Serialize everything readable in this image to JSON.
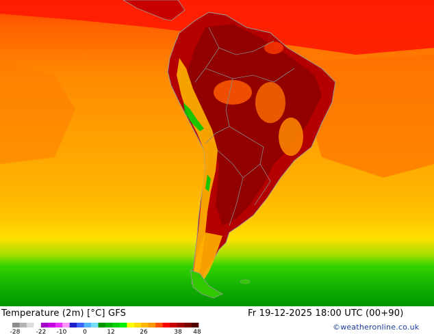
{
  "map": {
    "title": "Temperature (2m) [°C] GFS",
    "datetime": "Fr 19-12-2025 18:00 UTC (00+90)",
    "credit": "©weatheronline.co.uk"
  },
  "legend": {
    "colors": [
      "#8c8c8c",
      "#b4b4b4",
      "#dcdcdc",
      "#ffffff",
      "#a000c8",
      "#c800e6",
      "#e632ff",
      "#ff96ff",
      "#1e1ec8",
      "#3c64ff",
      "#50b4ff",
      "#78dcff",
      "#009600",
      "#00b400",
      "#00d200",
      "#00f000",
      "#ffff00",
      "#ffdc00",
      "#ffb400",
      "#ff9600",
      "#ff5000",
      "#ff0000",
      "#c80000",
      "#a00000",
      "#780000",
      "#500000"
    ],
    "tick_labels": [
      "-28",
      "-22",
      "-10",
      "0",
      "12",
      "26",
      "38",
      "48"
    ]
  }
}
